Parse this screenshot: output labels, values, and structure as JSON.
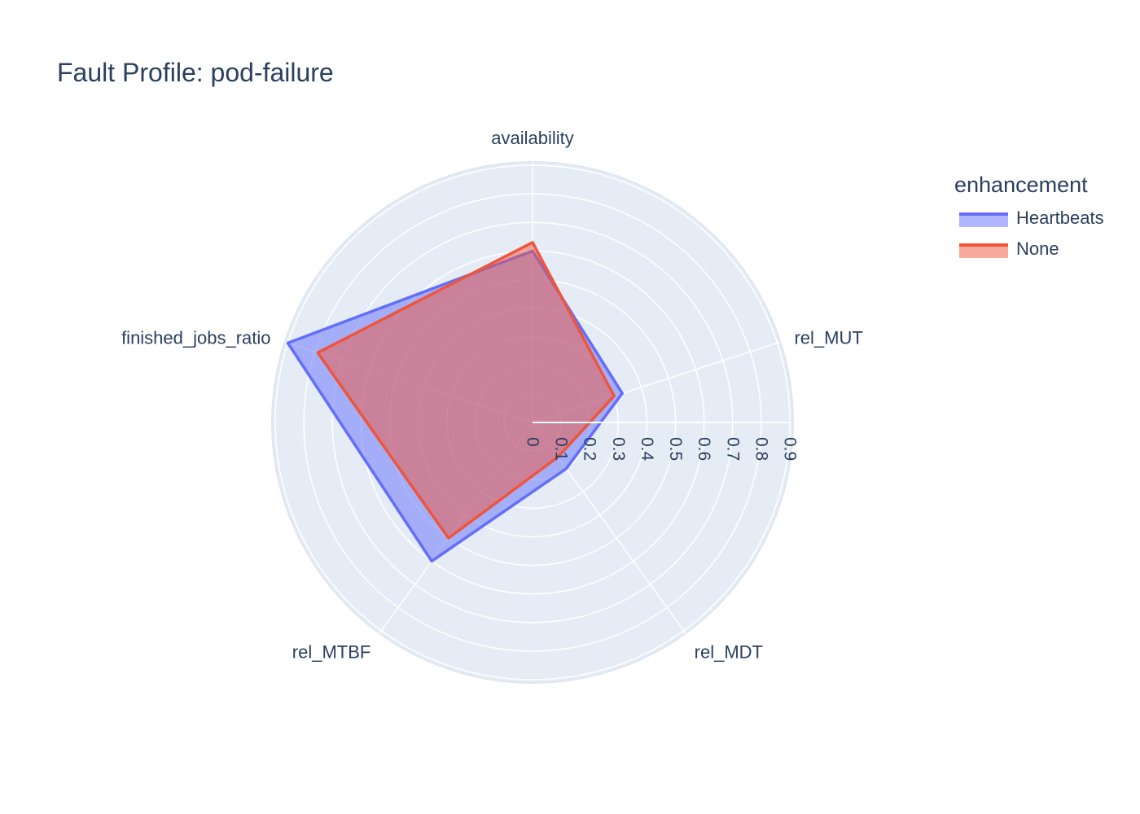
{
  "chart_data": {
    "type": "radar",
    "title": "Fault Profile: pod-failure",
    "theta": [
      "availability",
      "rel_MUT",
      "rel_MDT",
      "rel_MTBF",
      "finished_jobs_ratio"
    ],
    "radial_ticks": [
      "0",
      "0.1",
      "0.2",
      "0.3",
      "0.4",
      "0.5",
      "0.6",
      "0.7",
      "0.8",
      "0.9"
    ],
    "radial_range": [
      0,
      0.9
    ],
    "legend_title": "enhancement",
    "legend_position": "top-right",
    "grid": true,
    "series": [
      {
        "name": "Heartbeats",
        "color": "#636efa",
        "values": [
          0.6,
          0.33,
          0.2,
          0.6,
          0.9
        ]
      },
      {
        "name": "None",
        "color": "#ef553b",
        "values": [
          0.63,
          0.3,
          0.15,
          0.5,
          0.79
        ]
      }
    ],
    "background_color": "#e5ecf6"
  }
}
